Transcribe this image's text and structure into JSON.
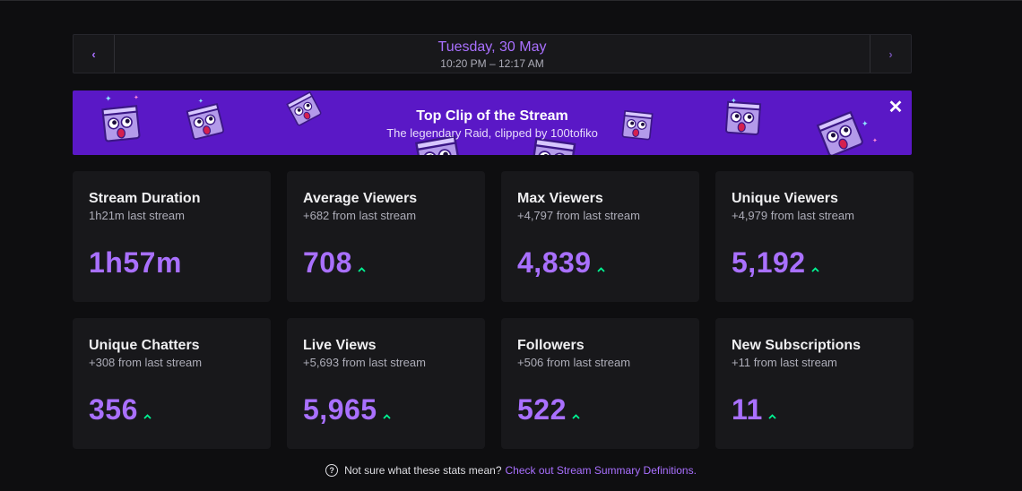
{
  "date_nav": {
    "prev_glyph": "‹",
    "next_glyph": "›",
    "date": "Tuesday, 30 May",
    "time_range": "10:20 PM – 12:17 AM"
  },
  "banner": {
    "title": "Top Clip of the Stream",
    "subtitle": "The legendary Raid, clipped by 100tofiko",
    "close_glyph": "✕",
    "background": "#5a18c6"
  },
  "stats": [
    {
      "title": "Stream Duration",
      "subtitle": "1h21m last stream",
      "value": "1h57m",
      "trend": "none"
    },
    {
      "title": "Average Viewers",
      "subtitle": "+682 from last stream",
      "value": "708",
      "trend": "up"
    },
    {
      "title": "Max Viewers",
      "subtitle": "+4,797 from last stream",
      "value": "4,839",
      "trend": "up"
    },
    {
      "title": "Unique Viewers",
      "subtitle": "+4,979 from last stream",
      "value": "5,192",
      "trend": "up"
    },
    {
      "title": "Unique Chatters",
      "subtitle": "+308 from last stream",
      "value": "356",
      "trend": "up"
    },
    {
      "title": "Live Views",
      "subtitle": "+5,693 from last stream",
      "value": "5,965",
      "trend": "up"
    },
    {
      "title": "Followers",
      "subtitle": "+506 from last stream",
      "value": "522",
      "trend": "up"
    },
    {
      "title": "New Subscriptions",
      "subtitle": "+11 from last stream",
      "value": "11",
      "trend": "up"
    }
  ],
  "footer": {
    "help_glyph": "?",
    "text": "Not sure what these stats mean?",
    "link": "Check out Stream Summary Definitions."
  },
  "colors": {
    "accent": "#a970ff",
    "trend_up": "#00f593",
    "card_bg": "#18181b",
    "page_bg": "#0e0e10"
  }
}
